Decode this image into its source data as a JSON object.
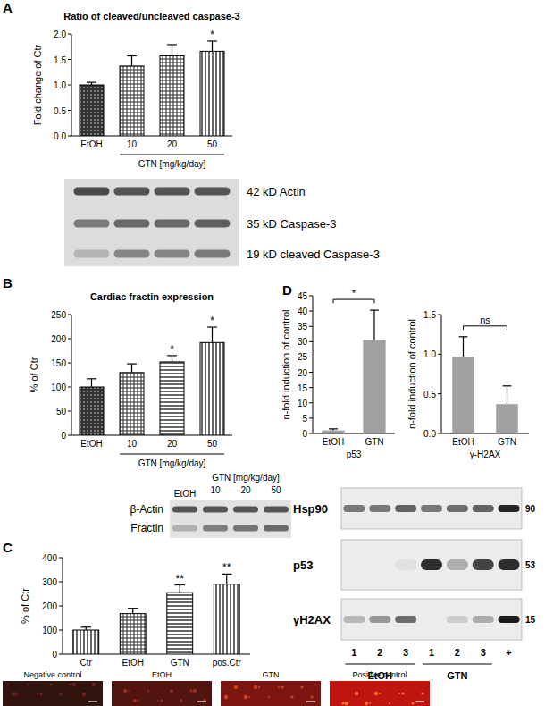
{
  "chart_data": [
    {
      "panel": "A",
      "type": "bar",
      "title": "Ratio of cleaved/uncleaved caspase-3",
      "y_label": "Fold change of Ctr",
      "categories": [
        "EtOH",
        "10",
        "20",
        "50"
      ],
      "group_label": "GTN [mg/kg/day]",
      "values": [
        1.0,
        1.37,
        1.57,
        1.66
      ],
      "errors": [
        0.05,
        0.2,
        0.22,
        0.2
      ],
      "color": "#333333",
      "ylim": [
        0,
        2
      ],
      "yticks": [
        {
          "value": 0,
          "label": "0.0"
        },
        0.5,
        {
          "value": 1,
          "label": "1.0"
        },
        1.5,
        {
          "value": 2,
          "label": "2.0"
        }
      ],
      "annotations": [
        {
          "text": "*",
          "category": "50"
        }
      ],
      "blot": {
        "labels": [
          "42 kD Actin",
          "35 kD Caspase-3",
          "19 kD cleaved Caspase-3"
        ]
      }
    },
    {
      "panel": "B",
      "type": "bar",
      "title": "Cardiac fractin expression",
      "y_label": "% of Ctr",
      "categories": [
        "EtOH",
        "10",
        "20",
        "50"
      ],
      "group_label": "GTN [mg/kg/day]",
      "values": [
        100,
        130,
        152,
        192
      ],
      "errors": [
        17,
        18,
        13,
        32
      ],
      "color": "#333333",
      "ylim": [
        0,
        250
      ],
      "yticks": [
        0,
        50,
        100,
        150,
        200,
        250
      ],
      "annotations": [
        {
          "text": "*",
          "category": "20"
        },
        {
          "text": "*",
          "category": "50"
        }
      ],
      "blot": {
        "header": [
          "EtOH",
          "GTN [mg/kg/day]"
        ],
        "lanes": [
          "10",
          "20",
          "50"
        ],
        "labels": [
          "β-Actin",
          "Fractin"
        ]
      }
    },
    {
      "panel": "C",
      "type": "bar",
      "y_label": "% of Ctr",
      "categories": [
        "Ctr",
        "EtOH",
        "GTN",
        "pos.Ctr"
      ],
      "values": [
        100,
        168,
        255,
        290
      ],
      "errors": [
        12,
        22,
        32,
        42
      ],
      "color": "#333333",
      "ylim": [
        0,
        400
      ],
      "yticks": [
        0,
        100,
        200,
        300,
        400
      ],
      "annotations": [
        {
          "text": "**",
          "category": "GTN"
        },
        {
          "text": "**",
          "category": "pos.Ctr"
        }
      ],
      "images": [
        "Negative control",
        "EtOH",
        "GTN",
        "Positive control"
      ]
    },
    {
      "panel": "D",
      "type": "bar",
      "y_label": "n-fold induction of control",
      "x_label": "p53",
      "categories": [
        "EtOH",
        "GTN"
      ],
      "values": [
        1.0,
        30.5
      ],
      "errors": [
        0.5,
        9.8
      ],
      "color": "#a0a0a0",
      "ylim": [
        0,
        45
      ],
      "yticks": [
        0,
        5,
        10,
        15,
        20,
        25,
        30,
        35,
        40,
        45
      ],
      "annotations": [
        {
          "text": "*",
          "from": "EtOH",
          "to": "GTN"
        }
      ]
    },
    {
      "type": "bar",
      "y_label": "n-fold induction of control",
      "x_label": "γ-H2AX",
      "categories": [
        "EtOH",
        "GTN"
      ],
      "values": [
        0.97,
        0.37
      ],
      "errors": [
        0.25,
        0.23
      ],
      "color": "#a0a0a0",
      "ylim": [
        0,
        1.5
      ],
      "yticks": [
        {
          "value": 0,
          "label": "0.0"
        },
        0.5,
        {
          "value": 1,
          "label": "1.0"
        },
        1.5
      ],
      "annotations": [
        {
          "text": "ns",
          "from": "EtOH",
          "to": "GTN"
        }
      ]
    }
  ],
  "blot_D": {
    "rows": [
      {
        "label": "Hsp90",
        "mass": 90
      },
      {
        "label": "p53",
        "mass": 53
      },
      {
        "label": "γH2AX",
        "mass": 15
      }
    ],
    "lanes": [
      "1",
      "2",
      "3",
      "1",
      "2",
      "3",
      "+"
    ],
    "groups": [
      "EtOH",
      "GTN"
    ]
  }
}
